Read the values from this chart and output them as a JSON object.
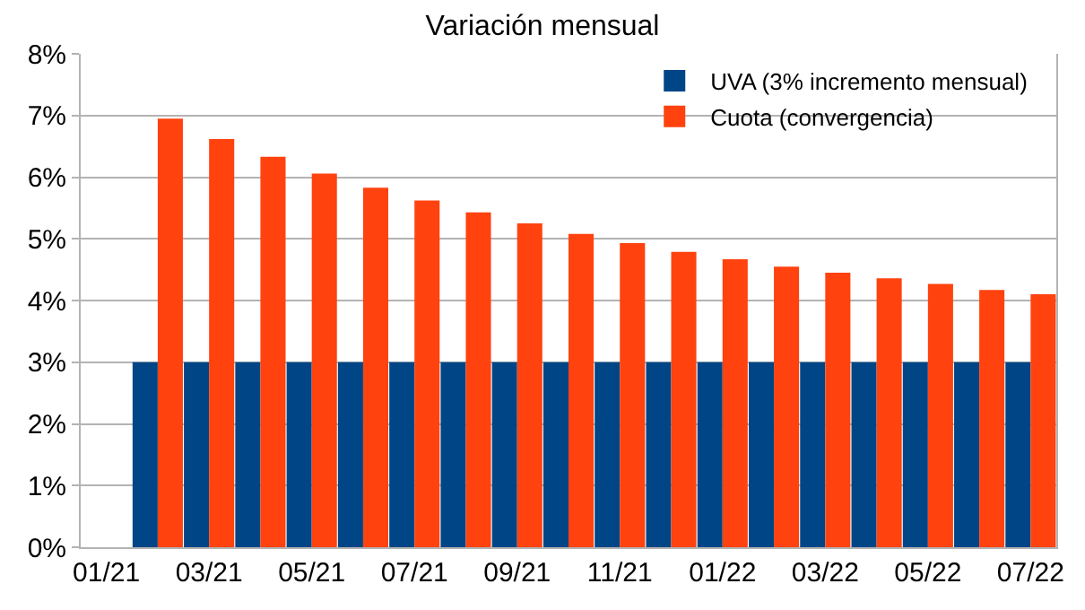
{
  "chart_data": {
    "type": "bar",
    "title": "Variación mensual",
    "categories": [
      "01/21",
      null,
      "03/21",
      null,
      "05/21",
      null,
      "07/21",
      null,
      "09/21",
      null,
      "11/21",
      null,
      "01/22",
      null,
      "03/22",
      null,
      "05/22",
      null,
      "07/22"
    ],
    "series": [
      {
        "name": "UVA (3% incremento mensual)",
        "color": "#004586",
        "values": [
          null,
          3,
          3,
          3,
          3,
          3,
          3,
          3,
          3,
          3,
          3,
          3,
          3,
          3,
          3,
          3,
          3,
          3,
          3
        ]
      },
      {
        "name": "Cuota (convergencia)",
        "color": "#ff420e",
        "values": [
          null,
          6.95,
          6.62,
          6.33,
          6.06,
          5.83,
          5.62,
          5.43,
          5.25,
          5.08,
          4.93,
          4.79,
          4.67,
          4.55,
          4.45,
          4.36,
          4.27,
          4.17,
          4.1
        ]
      }
    ],
    "ylim": [
      0,
      8
    ],
    "yticks": [
      {
        "value": 0,
        "label": "0%"
      },
      {
        "value": 1,
        "label": "1%"
      },
      {
        "value": 2,
        "label": "2%"
      },
      {
        "value": 3,
        "label": "3%"
      },
      {
        "value": 4,
        "label": "4%"
      },
      {
        "value": 5,
        "label": "5%"
      },
      {
        "value": 6,
        "label": "6%"
      },
      {
        "value": 7,
        "label": "7%"
      },
      {
        "value": 8,
        "label": "8%"
      }
    ],
    "grid": "y",
    "legend": "top right"
  }
}
